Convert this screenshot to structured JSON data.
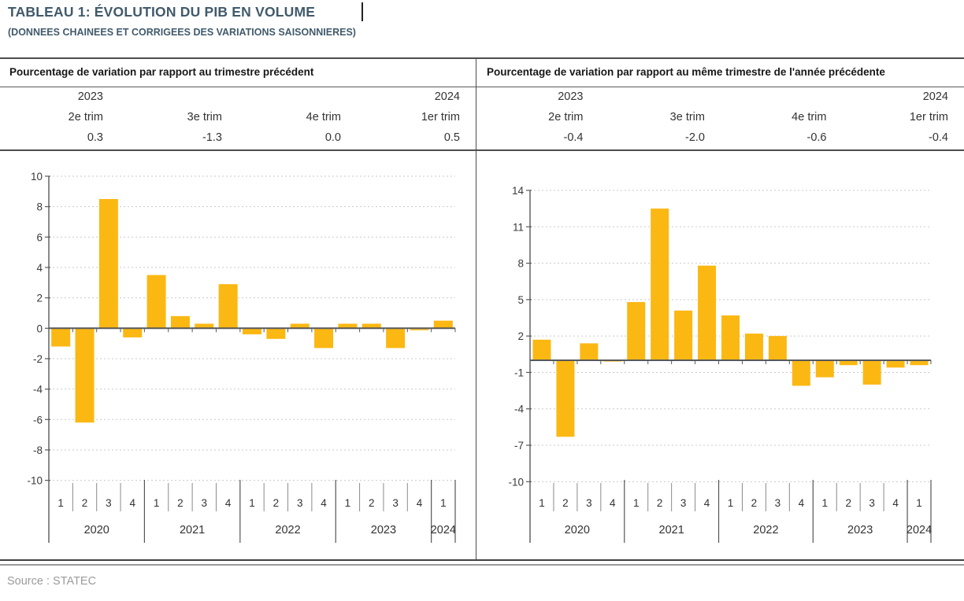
{
  "title": "TABLEAU 1: ÉVOLUTION DU PIB EN VOLUME",
  "subtitle": "(DONNEES CHAINEES ET CORRIGEES DES VARIATIONS SAISONNIERES)",
  "source": "Source : STATEC",
  "colors": {
    "bar": "#FBB813",
    "title_text": "#415A6B",
    "grid": "#C9C9C9",
    "axis": "#58595B",
    "rule": "#4D4D4D"
  },
  "summary_table": {
    "panels": [
      {
        "header": "Pourcentage de variation par rapport au trimestre précédent",
        "years": [
          "2023",
          "",
          "",
          "2024"
        ],
        "quarters": [
          "2e trim",
          "3e trim",
          "4e trim",
          "1er trim"
        ],
        "values": [
          "0.3",
          "-1.3",
          "0.0",
          "0.5"
        ]
      },
      {
        "header": "Pourcentage de variation par rapport au même trimestre de l'année précédente",
        "years": [
          "2023",
          "",
          "",
          "2024"
        ],
        "quarters": [
          "2e trim",
          "3e trim",
          "4e trim",
          "1er trim"
        ],
        "values": [
          "-0.4",
          "-2.0",
          "-0.6",
          "-0.4"
        ]
      }
    ]
  },
  "chart_data": [
    {
      "type": "bar",
      "title": "Pourcentage de variation par rapport au trimestre précédent",
      "x_years": [
        "2020",
        "2021",
        "2022",
        "2023",
        "2024"
      ],
      "quarters_per_year": [
        4,
        4,
        4,
        4,
        1
      ],
      "quarter_labels": [
        "1",
        "2",
        "3",
        "4",
        "1",
        "2",
        "3",
        "4",
        "1",
        "2",
        "3",
        "4",
        "1",
        "2",
        "3",
        "4",
        "1"
      ],
      "values": [
        -1.2,
        -6.2,
        8.5,
        -0.6,
        3.5,
        0.8,
        0.3,
        2.9,
        -0.4,
        -0.7,
        0.3,
        -1.3,
        0.3,
        0.3,
        -1.3,
        0.0,
        0.5
      ],
      "y_ticks": [
        10,
        8,
        6,
        4,
        2,
        0,
        -2,
        -4,
        -6,
        -8,
        -10
      ],
      "ylim": [
        -10,
        10
      ],
      "grid": "dashed",
      "legend": "none",
      "bar_color": "#FBB813"
    },
    {
      "type": "bar",
      "title": "Pourcentage de variation par rapport au même trimestre de l'année précédente",
      "x_years": [
        "2020",
        "2021",
        "2022",
        "2023",
        "2024"
      ],
      "quarters_per_year": [
        4,
        4,
        4,
        4,
        1
      ],
      "quarter_labels": [
        "1",
        "2",
        "3",
        "4",
        "1",
        "2",
        "3",
        "4",
        "1",
        "2",
        "3",
        "4",
        "1",
        "2",
        "3",
        "4",
        "1"
      ],
      "values": [
        1.7,
        -6.3,
        1.4,
        -0.1,
        4.8,
        12.5,
        4.1,
        7.8,
        3.7,
        2.2,
        2.0,
        -2.1,
        -1.4,
        -0.4,
        -2.0,
        -0.6,
        -0.4
      ],
      "y_ticks": [
        14,
        11,
        8,
        5,
        2,
        -1,
        -4,
        -7,
        -10
      ],
      "ylim": [
        -10,
        14
      ],
      "grid": "dashed",
      "legend": "none",
      "bar_color": "#FBB813"
    }
  ]
}
